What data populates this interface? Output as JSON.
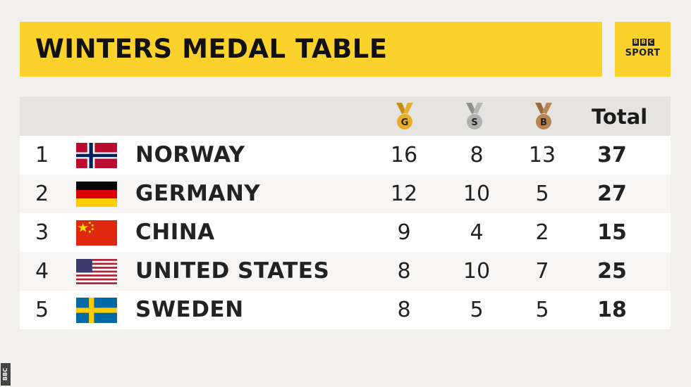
{
  "header": {
    "title": "WINTERS MEDAL TABLE",
    "logo": {
      "blocks": [
        "B",
        "B",
        "C"
      ],
      "text": "SPORT"
    }
  },
  "columns": {
    "gold_letter": "G",
    "silver_letter": "S",
    "bronze_letter": "B",
    "total": "Total"
  },
  "colors": {
    "accent_yellow": "#fbd12c",
    "gold": "#d9a520",
    "silver": "#a9a9a9",
    "bronze": "#b5834f"
  },
  "rows": [
    {
      "rank": "1",
      "country": "NORWAY",
      "flag": "norway",
      "gold": "16",
      "silver": "8",
      "bronze": "13",
      "total": "37"
    },
    {
      "rank": "2",
      "country": "GERMANY",
      "flag": "germany",
      "gold": "12",
      "silver": "10",
      "bronze": "5",
      "total": "27"
    },
    {
      "rank": "3",
      "country": "CHINA",
      "flag": "china",
      "gold": "9",
      "silver": "4",
      "bronze": "2",
      "total": "15"
    },
    {
      "rank": "4",
      "country": "UNITED STATES",
      "flag": "united-states",
      "gold": "8",
      "silver": "10",
      "bronze": "7",
      "total": "25"
    },
    {
      "rank": "5",
      "country": "SWEDEN",
      "flag": "sweden",
      "gold": "8",
      "silver": "5",
      "bronze": "5",
      "total": "18"
    }
  ],
  "watermark": "BBC"
}
